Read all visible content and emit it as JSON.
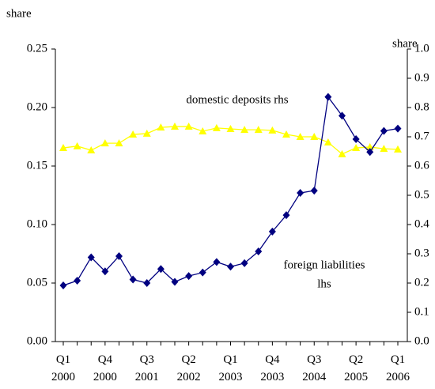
{
  "chart_data": {
    "type": "line",
    "y_label": "share",
    "y2_label": "share",
    "categories": [
      "Q1 2000",
      null,
      null,
      "Q4 2000",
      null,
      null,
      "Q3 2001",
      null,
      null,
      "Q2 2002",
      null,
      null,
      "Q1 2003",
      null,
      null,
      "Q4 2003",
      null,
      null,
      "Q3 2004",
      null,
      null,
      "Q2 2005",
      null,
      null,
      "Q1 2006"
    ],
    "series": [
      {
        "color": "#000080",
        "marker": "diamond",
        "values": [
          0.048,
          0.052,
          0.072,
          0.06,
          0.073,
          0.053,
          0.05,
          0.062,
          0.051,
          0.056,
          0.059,
          0.068,
          0.064,
          0.067,
          0.077,
          0.094,
          0.108,
          0.127,
          0.129,
          0.209,
          0.193,
          0.173,
          0.162,
          0.18,
          0.182
        ]
      },
      {
        "color": "#ffff00",
        "marker": "triangle",
        "axis": "y2",
        "values": [
          0.662,
          0.668,
          0.654,
          0.678,
          0.678,
          0.708,
          0.711,
          0.732,
          0.735,
          0.735,
          0.719,
          0.73,
          0.727,
          0.724,
          0.724,
          0.722,
          0.708,
          0.7,
          0.7,
          0.681,
          0.641,
          0.662,
          0.665,
          0.659,
          0.657
        ]
      }
    ],
    "annotations": [
      "domestic deposits rhs",
      "foreign liabilities",
      "lhs"
    ],
    "ylim": [
      0,
      0.25
    ],
    "yticks": [
      {
        "value": 0,
        "label": "0.00"
      },
      0.05,
      {
        "value": 0.1,
        "label": "0.10"
      },
      0.15,
      {
        "value": 0.2,
        "label": "0.20"
      },
      0.25
    ],
    "y2lim": [
      0,
      1
    ],
    "y2ticks": [
      {
        "value": 0,
        "label": "0.0"
      },
      0.1,
      0.2,
      0.3,
      0.4,
      0.5,
      0.6,
      0.7,
      0.8,
      0.9,
      {
        "value": 1,
        "label": "1.0"
      }
    ]
  }
}
